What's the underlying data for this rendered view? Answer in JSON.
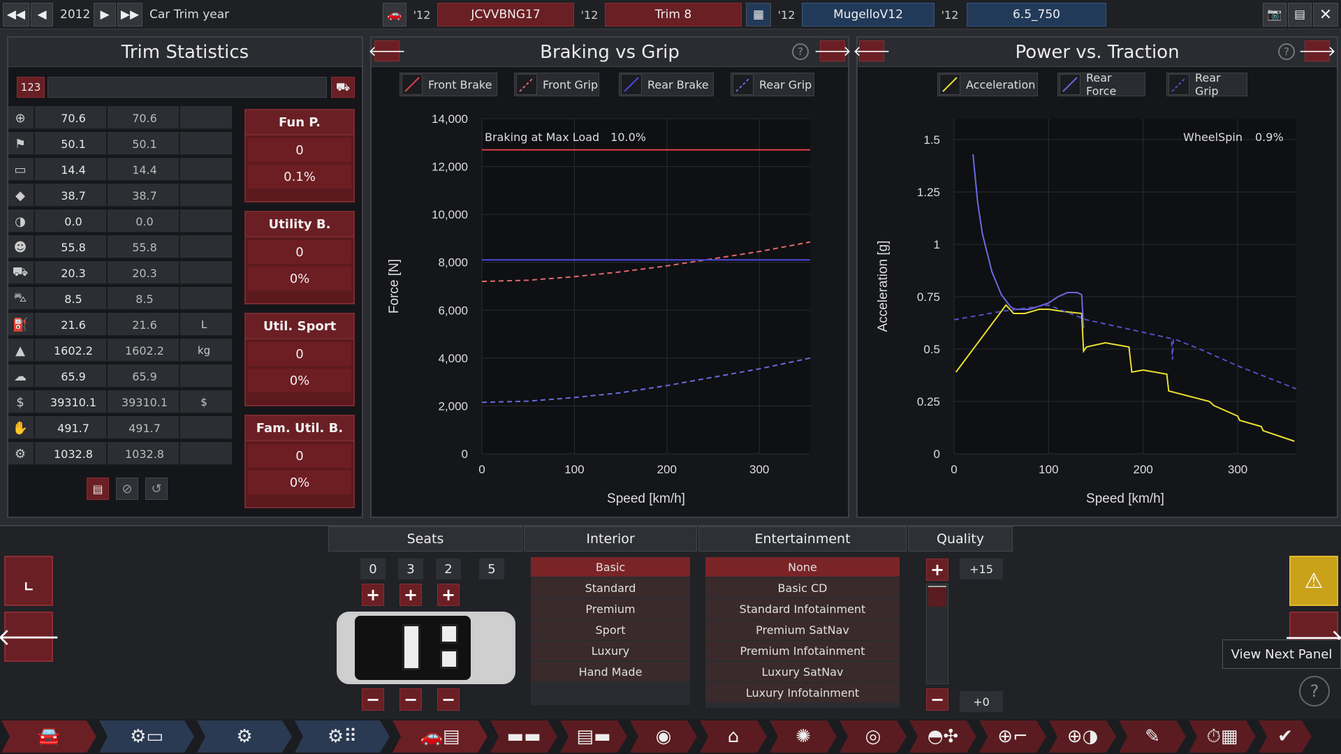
{
  "topbar": {
    "year": "2012",
    "year_label": "Car Trim year",
    "model_year": "'12",
    "model_name": "JCVVBNG17",
    "trim_year": "'12",
    "trim_name": "Trim 8",
    "engine_year": "'12",
    "engine_name": "MugelloV12",
    "variant_year": "'12",
    "variant_name": "6.5_750"
  },
  "stats": {
    "title": "Trim Statistics",
    "search_label": "123",
    "rows": [
      {
        "icon": "steering-wheel-icon",
        "v1": "70.6",
        "v2": "70.6",
        "unit": ""
      },
      {
        "icon": "race-flag-icon",
        "v1": "50.1",
        "v2": "50.1",
        "unit": ""
      },
      {
        "icon": "car-seat-icon",
        "v1": "14.4",
        "v2": "14.4",
        "unit": ""
      },
      {
        "icon": "diamond-icon",
        "v1": "38.7",
        "v2": "38.7",
        "unit": ""
      },
      {
        "icon": "safety-icon",
        "v1": "0.0",
        "v2": "0.0",
        "unit": ""
      },
      {
        "icon": "people-icon",
        "v1": "55.8",
        "v2": "55.8",
        "unit": ""
      },
      {
        "icon": "truck-icon",
        "v1": "20.3",
        "v2": "20.3",
        "unit": ""
      },
      {
        "icon": "offroad-icon",
        "v1": "8.5",
        "v2": "8.5",
        "unit": ""
      },
      {
        "icon": "fuel-icon",
        "v1": "21.6",
        "v2": "21.6",
        "unit": "L"
      },
      {
        "icon": "weight-icon",
        "v1": "1602.2",
        "v2": "1602.2",
        "unit": "kg"
      },
      {
        "icon": "environment-icon",
        "v1": "65.9",
        "v2": "65.9",
        "unit": ""
      },
      {
        "icon": "money-bag-icon",
        "v1": "39310.1",
        "v2": "39310.1",
        "unit": "$"
      },
      {
        "icon": "hands-icon",
        "v1": "491.7",
        "v2": "491.7",
        "unit": ""
      },
      {
        "icon": "gear-wrench-icon",
        "v1": "1032.8",
        "v2": "1032.8",
        "unit": ""
      }
    ],
    "groups": [
      {
        "title": "Fun P.",
        "value": "0",
        "pct": "0.1%"
      },
      {
        "title": "Utility B.",
        "value": "0",
        "pct": "0%"
      },
      {
        "title": "Util. Sport",
        "value": "0",
        "pct": "0%"
      },
      {
        "title": "Fam. Util. B.",
        "value": "0",
        "pct": "0%"
      }
    ]
  },
  "braking": {
    "title": "Braking vs Grip",
    "legend": [
      "Front Brake",
      "Front Grip",
      "Rear Brake",
      "Rear Grip"
    ],
    "annotation_label": "Braking at Max Load",
    "annotation_value": "10.0%"
  },
  "power": {
    "title": "Power vs. Traction",
    "legend": [
      "Acceleration",
      "Rear Force",
      "Rear Grip"
    ],
    "annotation_label": "WheelSpin",
    "annotation_value": "0.9%"
  },
  "chart_data": [
    {
      "type": "line",
      "title": "Braking vs Grip",
      "xlabel": "Speed [km/h]",
      "ylabel": "Force [N]",
      "xlim": [
        0,
        355
      ],
      "ylim": [
        0,
        14000
      ],
      "xticks": [
        "0",
        "100",
        "200",
        "300"
      ],
      "yticks": [
        "0",
        "2,000",
        "4,000",
        "6,000",
        "8,000",
        "10,000",
        "12,000",
        "14,000"
      ],
      "series": [
        {
          "name": "Front Brake",
          "color": "#e0404a",
          "dash": false,
          "x": [
            0,
            355
          ],
          "y": [
            12700,
            12700
          ]
        },
        {
          "name": "Front Grip",
          "color": "#e06a6a",
          "dash": true,
          "x": [
            0,
            50,
            100,
            150,
            200,
            250,
            300,
            355
          ],
          "y": [
            7200,
            7250,
            7400,
            7600,
            7850,
            8150,
            8450,
            8850
          ]
        },
        {
          "name": "Rear Brake",
          "color": "#4a4ae0",
          "dash": false,
          "x": [
            0,
            355
          ],
          "y": [
            8100,
            8100
          ]
        },
        {
          "name": "Rear Grip",
          "color": "#6a6ae0",
          "dash": true,
          "x": [
            0,
            50,
            100,
            150,
            200,
            250,
            300,
            355
          ],
          "y": [
            2150,
            2200,
            2350,
            2550,
            2850,
            3200,
            3550,
            4000
          ]
        }
      ]
    },
    {
      "type": "line",
      "title": "Power vs. Traction",
      "xlabel": "Speed [km/h]",
      "ylabel": "Acceleration [g]",
      "xlim": [
        0,
        362
      ],
      "ylim": [
        0,
        1.6
      ],
      "xticks": [
        "0",
        "100",
        "200",
        "300"
      ],
      "yticks": [
        "0",
        "0.25",
        "0.5",
        "0.75",
        "1",
        "1.25",
        "1.5"
      ],
      "series": [
        {
          "name": "Acceleration",
          "color": "#e8e030",
          "dash": false,
          "x": [
            2,
            55,
            63,
            75,
            90,
            100,
            115,
            135,
            137,
            140,
            160,
            185,
            188,
            200,
            225,
            227,
            270,
            275,
            300,
            302,
            325,
            327,
            360
          ],
          "y": [
            0.39,
            0.71,
            0.67,
            0.67,
            0.69,
            0.69,
            0.68,
            0.67,
            0.49,
            0.51,
            0.53,
            0.51,
            0.39,
            0.4,
            0.38,
            0.3,
            0.25,
            0.23,
            0.18,
            0.16,
            0.13,
            0.11,
            0.06
          ]
        },
        {
          "name": "Rear Force",
          "color": "#6a6ae0",
          "dash": false,
          "x": [
            20,
            25,
            30,
            40,
            50,
            60,
            65,
            80,
            100,
            110,
            120,
            130,
            135,
            137
          ],
          "y": [
            1.43,
            1.2,
            1.05,
            0.87,
            0.76,
            0.7,
            0.69,
            0.69,
            0.72,
            0.75,
            0.77,
            0.77,
            0.76,
            0.6
          ]
        },
        {
          "name": "Rear Grip",
          "color": "#5050c8",
          "dash": true,
          "x": [
            0,
            50,
            100,
            140,
            160,
            200,
            230,
            231,
            232,
            260,
            300,
            362
          ],
          "y": [
            0.64,
            0.68,
            0.71,
            0.64,
            0.62,
            0.58,
            0.55,
            0.45,
            0.55,
            0.5,
            0.42,
            0.31
          ]
        }
      ]
    }
  ],
  "bottom": {
    "seats_title": "Seats",
    "seat_counts": [
      "0",
      "3",
      "2",
      "5"
    ],
    "interior_title": "Interior",
    "interior_options": [
      "Basic",
      "Standard",
      "Premium",
      "Sport",
      "Luxury",
      "Hand Made"
    ],
    "interior_selected": "Basic",
    "entertainment_title": "Entertainment",
    "entertainment_options": [
      "None",
      "Basic CD",
      "Standard Infotainment",
      "Premium SatNav",
      "Premium Infotainment",
      "Luxury SatNav",
      "Luxury Infotainment"
    ],
    "entertainment_selected": "None",
    "quality_title": "Quality",
    "quality_max": "+15",
    "quality_current": "+0",
    "tooltip": "View Next Panel"
  },
  "colors": {
    "accent_red": "#6a1f24",
    "accent_blue": "#223a5a",
    "panel_bg": "#15161a"
  }
}
